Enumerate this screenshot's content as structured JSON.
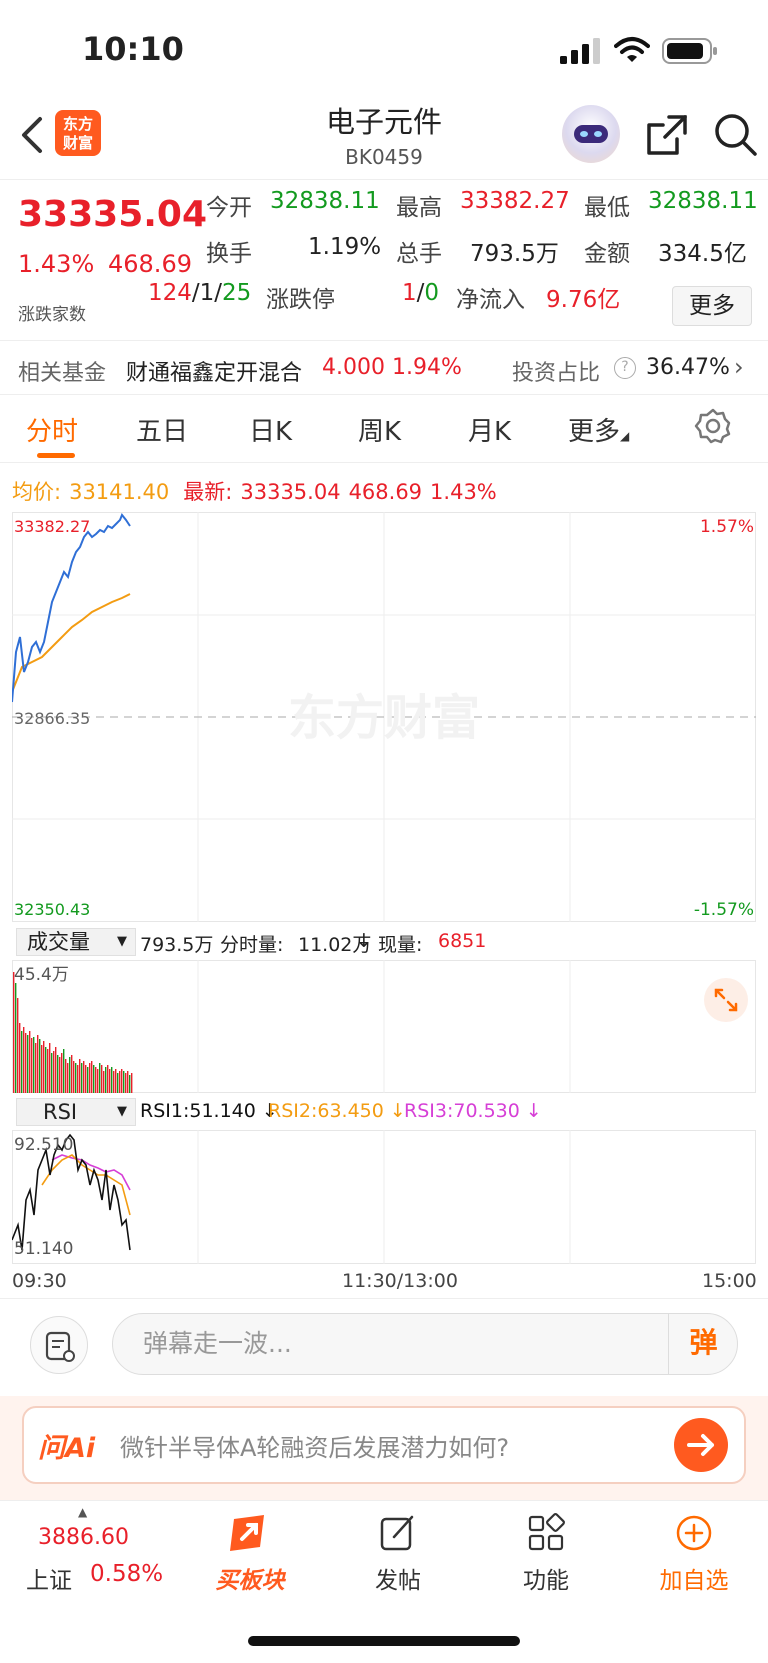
{
  "status_bar": {
    "time": "10:10"
  },
  "header": {
    "logo_text_1": "东方",
    "logo_text_2": "财富",
    "title": "电子元件",
    "code": "BK0459"
  },
  "quote": {
    "last": "33335.04",
    "change_pct": "1.43%",
    "change_val": "468.69",
    "adv_dec_label": "涨跌家数",
    "open_label": "今开",
    "open": "32838.11",
    "high_label": "最高",
    "high": "33382.27",
    "low_label": "最低",
    "low": "32838.11",
    "turnover_label": "换手",
    "turnover": "1.19%",
    "volume_label": "总手",
    "volume": "793.5万",
    "amount_label": "金额",
    "amount": "334.5亿",
    "adv": "124",
    "sep": "/",
    "flat": "1",
    "dec": "25",
    "limit_label": "涨跌停",
    "limit_up": "1",
    "limit_down": "0",
    "inflow_label": "净流入",
    "inflow": "9.76亿",
    "more": "更多"
  },
  "fund": {
    "label": "相关基金",
    "name": "财通福鑫定开混合",
    "nav": "4.000",
    "pct": "1.94%",
    "ratio_label": "投资占比",
    "ratio": "36.47%"
  },
  "tabs": [
    "分时",
    "五日",
    "日K",
    "周K",
    "月K",
    "更多"
  ],
  "avg_row": {
    "avg_label": "均价:",
    "avg": "33141.40",
    "latest_label": "最新:",
    "latest": "33335.04",
    "chg": "468.69",
    "pct": "1.43%"
  },
  "main_chart": {
    "y_top": "33382.27",
    "y_mid": "32866.35",
    "y_bot": "32350.43",
    "pct_top": "1.57%",
    "pct_bot": "-1.57%",
    "watermark": "东方财富"
  },
  "volume": {
    "selector": "成交量",
    "total": "793.5万",
    "minute_label": "分时量:",
    "minute": "11.02万",
    "arrow": "↓",
    "now_label": "现量:",
    "now": "6851",
    "max_label": "45.4万"
  },
  "rsi": {
    "selector": "RSI",
    "rsi1": "RSI1:51.140 ↓",
    "rsi2": "RSI2:63.450 ↓",
    "rsi3": "RSI3:70.530 ↓",
    "y_top": "92.510",
    "y_bot": "51.140",
    "colors": {
      "rsi1": "#111111",
      "rsi2": "#f39c12",
      "rsi3": "#d63fd6"
    }
  },
  "time_axis": {
    "start": "09:30",
    "mid": "11:30/13:00",
    "end": "15:00"
  },
  "danmaku": {
    "placeholder": "弹幕走一波...",
    "send": "弹"
  },
  "ai": {
    "logo": "问Ai",
    "question": "微针半导体A轮融资后发展潜力如何?"
  },
  "bottom_nav": {
    "index_value": "3886.60",
    "index_name": "上证",
    "index_pct": "0.58%",
    "items": [
      "买板块",
      "发帖",
      "功能",
      "加自选"
    ]
  },
  "colors": {
    "up": "#e8202a",
    "down": "#139a1f",
    "accent": "#ff6a00",
    "price_line": "#2f6fd6",
    "avg_line": "#f39c12"
  }
}
